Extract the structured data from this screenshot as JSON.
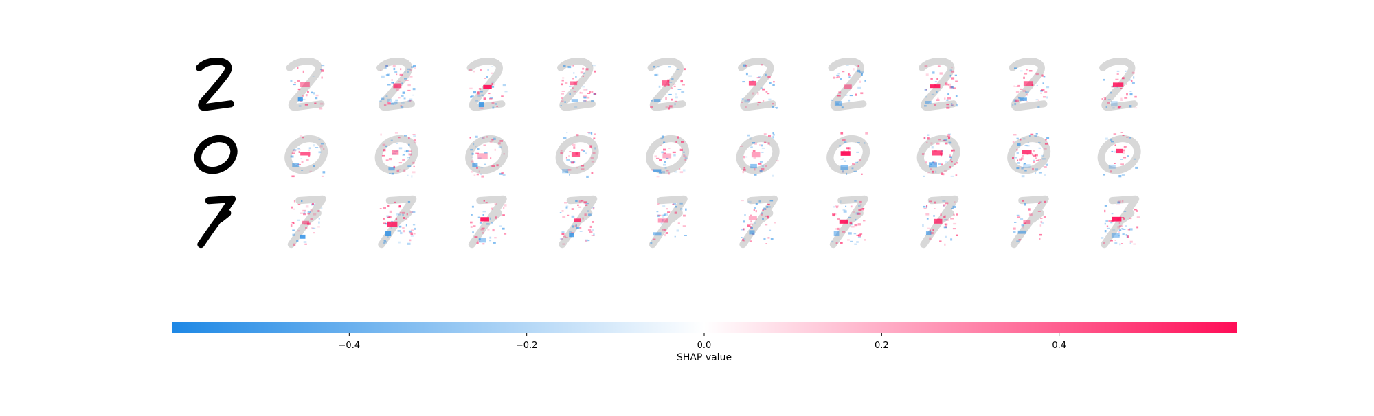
{
  "chart_data": {
    "type": "heatmap",
    "title": "",
    "rows": [
      {
        "digit": "2"
      },
      {
        "digit": "0"
      },
      {
        "digit": "7"
      }
    ],
    "num_explanation_columns": 10,
    "colorbar": {
      "label": "SHAP value",
      "range": [
        -0.6,
        0.6
      ],
      "ticks": [
        {
          "value": -0.4,
          "label": "−0.4"
        },
        {
          "value": -0.2,
          "label": "−0.2"
        },
        {
          "value": 0.0,
          "label": "0.0"
        },
        {
          "value": 0.2,
          "label": "0.2"
        },
        {
          "value": 0.4,
          "label": "0.4"
        }
      ],
      "colors": {
        "negative": "#1e88e5",
        "zero": "#ffffff",
        "positive": "#ff0d57"
      }
    },
    "digit_color": "#000000",
    "ghost_digit_color": "#d8d8d8"
  }
}
